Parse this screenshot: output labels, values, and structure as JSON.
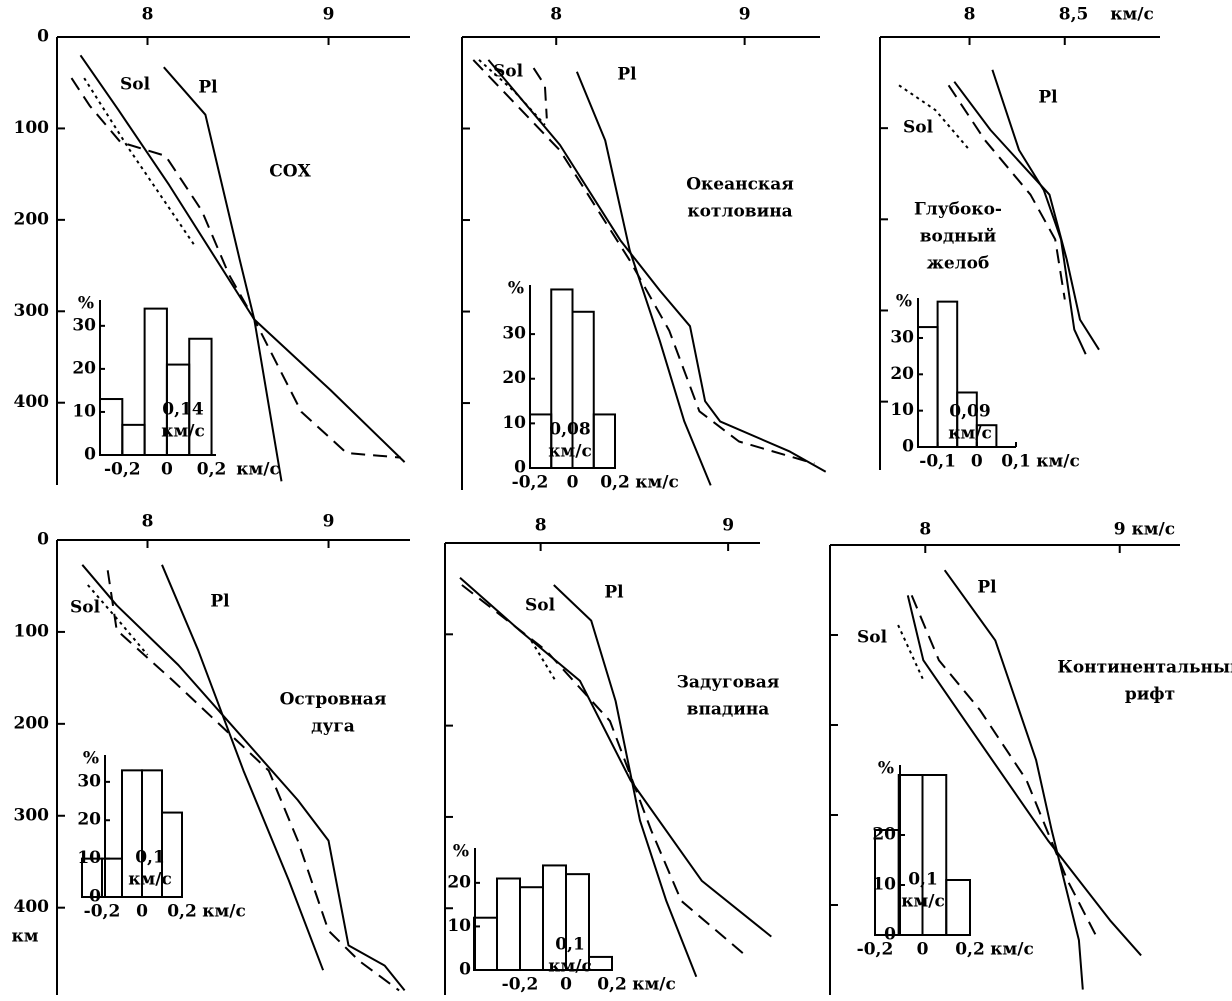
{
  "chart_data": [
    {
      "type": "line",
      "title": [
        "СОХ"
      ],
      "xlim": [
        7.5,
        9.45
      ],
      "xticks": [
        8,
        9
      ],
      "ylim": [
        0,
        490
      ],
      "yticks": [
        0,
        100,
        200,
        300,
        400
      ],
      "show_ytick_labels": true,
      "series": [
        {
          "name": "Pl",
          "style": "solid",
          "color": "#000",
          "x": [
            8.09,
            8.32,
            8.51,
            8.59,
            8.74
          ],
          "values": [
            33,
            85,
            244,
            309,
            486
          ]
        },
        {
          "name": "Sol",
          "style": "solid",
          "color": "#000",
          "x": [
            7.63,
            7.84,
            8.12,
            8.59,
            9.01,
            9.42
          ],
          "values": [
            20,
            80,
            162,
            309,
            386,
            465
          ]
        },
        {
          "style": "dashed",
          "color": "#000",
          "x": [
            7.58,
            7.68,
            7.85,
            8.1,
            8.3,
            8.45,
            8.59,
            8.85,
            9.1,
            9.4
          ],
          "values": [
            45,
            75,
            115,
            130,
            190,
            260,
            309,
            410,
            455,
            460
          ]
        },
        {
          "style": "dotted",
          "color": "#000",
          "x": [
            7.65,
            7.9,
            8.26
          ],
          "values": [
            45,
            123,
            228
          ]
        }
      ],
      "inset": {
        "type": "histogram",
        "bins": [
          -0.3,
          -0.2,
          -0.1,
          0,
          0.1,
          0.2
        ],
        "values": [
          13,
          7,
          34,
          21,
          27
        ],
        "xlim": [
          -0.3,
          0.22
        ],
        "xticks": [
          {
            "value": -0.2,
            "label": "-0,2"
          },
          0,
          {
            "value": 0.2,
            "label": "0,2"
          }
        ],
        "xlabel": "км/с",
        "ylabel": "%",
        "ylim": [
          0,
          36
        ],
        "yticks": [
          0,
          10,
          20,
          30
        ],
        "annotation": [
          "0,14",
          "км/с"
        ]
      }
    },
    {
      "type": "line",
      "title": [
        "Океанская",
        "котловина"
      ],
      "xlim": [
        7.5,
        9.4
      ],
      "xticks": [
        8,
        9
      ],
      "ylim": [
        0,
        495
      ],
      "yticks": [
        0,
        100,
        200,
        300,
        400
      ],
      "show_ytick_labels": false,
      "series": [
        {
          "name": "Pl",
          "style": "solid",
          "color": "#000",
          "x": [
            8.11,
            8.26,
            8.39,
            8.55,
            8.68,
            8.82
          ],
          "values": [
            38,
            113,
            233,
            332,
            420,
            490
          ]
        },
        {
          "name": "Sol",
          "style": "solid",
          "color": "#000",
          "x": [
            7.64,
            8.02,
            8.34,
            8.55,
            8.71,
            8.79,
            8.87,
            9.24,
            9.43
          ],
          "values": [
            25,
            118,
            222,
            277,
            316,
            398,
            420,
            453,
            475
          ]
        },
        {
          "style": "dashed",
          "color": "#000",
          "x": [
            7.88,
            7.94,
            7.95,
            null,
            7.56,
            8.02,
            8.39,
            8.6,
            8.76,
            8.97,
            9.37
          ],
          "values": [
            34,
            53,
            89,
            null,
            25,
            124,
            244,
            321,
            409,
            442,
            466
          ]
        },
        {
          "style": "dotted",
          "color": "#000",
          "x": [
            7.59,
            7.78,
            7.94
          ],
          "values": [
            25,
            60,
            96
          ]
        }
      ],
      "inset": {
        "type": "histogram",
        "bins": [
          -0.2,
          -0.1,
          0,
          0.1,
          0.2
        ],
        "values": [
          12,
          40,
          35,
          12
        ],
        "xlim": [
          -0.2,
          0.2
        ],
        "xticks": [
          {
            "value": -0.2,
            "label": "-0,2"
          },
          0,
          {
            "value": 0.2,
            "label": "0,2"
          }
        ],
        "xlabel": "км/с",
        "ylabel": "%",
        "ylim": [
          0,
          41
        ],
        "yticks": [
          0,
          10,
          20,
          30
        ],
        "annotation": [
          "0,08",
          "км/с"
        ]
      }
    },
    {
      "type": "line",
      "title": [
        "Глубоко-",
        "водный",
        "желоб"
      ],
      "xlim": [
        7.53,
        9.0
      ],
      "xticks": [
        8,
        {
          "value": 8.5,
          "label": "8,5"
        }
      ],
      "xunit": "км/с",
      "ylim": [
        0,
        475
      ],
      "yticks": [
        0,
        100,
        200,
        300,
        400
      ],
      "show_ytick_labels": false,
      "series": [
        {
          "name": "Pl",
          "style": "solid",
          "color": "#000",
          "x": [
            8.12,
            8.26,
            8.39,
            8.48,
            8.55,
            8.61
          ],
          "values": [
            36,
            124,
            168,
            222,
            321,
            348
          ]
        },
        {
          "style": "solid",
          "color": "#000",
          "x": [
            7.92,
            8.11,
            8.42,
            8.51,
            8.58,
            8.68
          ],
          "values": [
            49,
            102,
            173,
            244,
            310,
            343
          ]
        },
        {
          "style": "dashed",
          "color": "#000",
          "x": [
            7.89,
            8.08,
            8.32,
            8.45,
            8.5
          ],
          "values": [
            53,
            113,
            173,
            222,
            288
          ]
        },
        {
          "name": "Sol",
          "style": "dotted",
          "color": "#000",
          "x": [
            7.63,
            7.82,
            8.0
          ],
          "values": [
            53,
            80,
            124
          ]
        }
      ],
      "inset": {
        "type": "histogram",
        "bins": [
          -0.15,
          -0.1,
          -0.05,
          0,
          0.05
        ],
        "values": [
          33,
          40,
          15,
          6
        ],
        "xlim": [
          -0.15,
          0.1
        ],
        "xticks": [
          {
            "value": -0.1,
            "label": "-0,1"
          },
          0,
          {
            "value": 0.1,
            "label": "0,1"
          }
        ],
        "xlabel": "км/с",
        "ylabel": "%",
        "ylim": [
          0,
          41
        ],
        "yticks": [
          0,
          10,
          20,
          30
        ],
        "annotation": [
          "0,09",
          "км/с"
        ]
      }
    },
    {
      "type": "line",
      "title": [
        "Островная",
        "дуга"
      ],
      "xlim": [
        7.5,
        9.45
      ],
      "xticks": [
        8,
        9
      ],
      "ylim": [
        0,
        495
      ],
      "yticks": [
        0,
        100,
        200,
        300,
        400
      ],
      "show_ytick_labels": true,
      "ylabel": "км",
      "series": [
        {
          "name": "Pl",
          "style": "solid",
          "color": "#000",
          "x": [
            8.08,
            8.28,
            8.53,
            8.78,
            8.97
          ],
          "values": [
            27,
            120,
            251,
            370,
            468
          ]
        },
        {
          "name": "Sol",
          "style": "solid",
          "color": "#000",
          "x": [
            7.64,
            7.83,
            8.17,
            8.44,
            8.83,
            9.0,
            9.11,
            9.31,
            9.42
          ],
          "values": [
            27,
            71,
            136,
            196,
            283,
            327,
            441,
            463,
            490
          ]
        },
        {
          "style": "dashed",
          "color": "#000",
          "x": [
            7.78,
            7.83,
            8.14,
            8.67,
            8.83,
            9.0,
            9.17,
            9.39
          ],
          "values": [
            33,
            98,
            153,
            251,
            327,
            425,
            458,
            490
          ]
        },
        {
          "style": "dotted",
          "color": "#000",
          "x": [
            7.67,
            7.85,
            8.0
          ],
          "values": [
            49,
            90,
            125
          ]
        }
      ],
      "inset": {
        "type": "histogram",
        "bins": [
          -0.3,
          -0.2,
          -0.1,
          0,
          0.1,
          0.2
        ],
        "values": [
          10,
          10,
          33,
          33,
          22
        ],
        "xlim": [
          -0.3,
          0.2
        ],
        "xticks": [
          {
            "value": -0.2,
            "label": "-0,2"
          },
          0,
          {
            "value": 0.2,
            "label": "0,2"
          }
        ],
        "xlabel": "км/с",
        "ylabel": "%",
        "ylim": [
          0,
          37
        ],
        "yticks": [
          0,
          10,
          20,
          30
        ],
        "annotation": [
          "0,1",
          "км/с"
        ]
      }
    },
    {
      "type": "line",
      "title": [
        "Задуговая",
        "впадина"
      ],
      "xlim": [
        7.49,
        9.17
      ],
      "xticks": [
        8,
        9
      ],
      "ylim": [
        0,
        495
      ],
      "yticks": [
        0,
        100,
        200,
        300,
        400
      ],
      "show_ytick_labels": false,
      "series": [
        {
          "name": "Pl",
          "style": "solid",
          "color": "#000",
          "x": [
            8.07,
            8.27,
            8.4,
            8.53,
            8.67,
            8.83
          ],
          "values": [
            46,
            85,
            173,
            304,
            392,
            475
          ]
        },
        {
          "name": "Sol",
          "style": "solid",
          "color": "#000",
          "x": [
            7.57,
            7.89,
            8.21,
            8.48,
            8.86,
            9.23
          ],
          "values": [
            38,
            96,
            151,
            260,
            370,
            431
          ]
        },
        {
          "style": "dashed",
          "color": "#000",
          "x": [
            7.58,
            8.03,
            8.37,
            8.59,
            8.75,
            9.1
          ],
          "values": [
            46,
            118,
            195,
            315,
            392,
            453
          ]
        },
        {
          "style": "dotted",
          "color": "#000",
          "x": [
            7.95,
            8.08
          ],
          "values": [
            107,
            151
          ]
        }
      ],
      "inset": {
        "type": "histogram",
        "bins": [
          -0.4,
          -0.3,
          -0.2,
          -0.1,
          0,
          0.1,
          0.2
        ],
        "values": [
          12,
          21,
          19,
          24,
          22,
          3
        ],
        "xlim": [
          -0.4,
          0.2
        ],
        "xticks": [
          {
            "value": -0.2,
            "label": "-0,2"
          },
          0,
          {
            "value": 0.2,
            "label": "0,2"
          }
        ],
        "xlabel": "км/с",
        "ylabel": "%",
        "ylim": [
          0,
          28
        ],
        "yticks": [
          0,
          10,
          20
        ],
        "annotation": [
          "0,1",
          "км/с"
        ]
      }
    },
    {
      "type": "line",
      "title": [
        "Континентальный",
        "рифт"
      ],
      "xlim": [
        7.51,
        9.31
      ],
      "xticks": [
        8,
        {
          "value": 9,
          "label": "9 км/с"
        }
      ],
      "ylim": [
        0,
        500
      ],
      "yticks": [
        0,
        100,
        200,
        300,
        400
      ],
      "show_ytick_labels": false,
      "series": [
        {
          "name": "Pl",
          "style": "solid",
          "color": "#000",
          "x": [
            8.1,
            8.36,
            8.57,
            8.65,
            8.79,
            8.81
          ],
          "values": [
            28,
            106,
            239,
            317,
            439,
            494
          ]
        },
        {
          "style": "solid",
          "color": "#000",
          "x": [
            7.91,
            7.99,
            8.2,
            8.63,
            8.95,
            9.11
          ],
          "values": [
            56,
            128,
            194,
            328,
            417,
            456
          ]
        },
        {
          "style": "dashed",
          "color": "#000",
          "x": [
            7.93,
            8.07,
            8.28,
            8.52,
            8.73,
            8.89
          ],
          "values": [
            56,
            128,
            183,
            261,
            372,
            439
          ]
        },
        {
          "name": "Sol",
          "style": "dotted",
          "color": "#000",
          "x": [
            7.86,
            7.99
          ],
          "values": [
            89,
            150
          ]
        }
      ],
      "inset": {
        "type": "histogram",
        "bins": [
          -0.2,
          -0.1,
          0,
          0.1,
          0.2
        ],
        "values": [
          21,
          32,
          32,
          11
        ],
        "xlim": [
          -0.2,
          0.2
        ],
        "xticks": [
          {
            "value": -0.2,
            "label": "-0,2"
          },
          0,
          {
            "value": 0.2,
            "label": "0,2"
          }
        ],
        "xlabel": "км/с",
        "ylabel": "%",
        "ylim": [
          0,
          34
        ],
        "yticks": [
          0,
          10,
          20
        ],
        "annotation": [
          "0,1",
          "км/с"
        ]
      }
    }
  ]
}
